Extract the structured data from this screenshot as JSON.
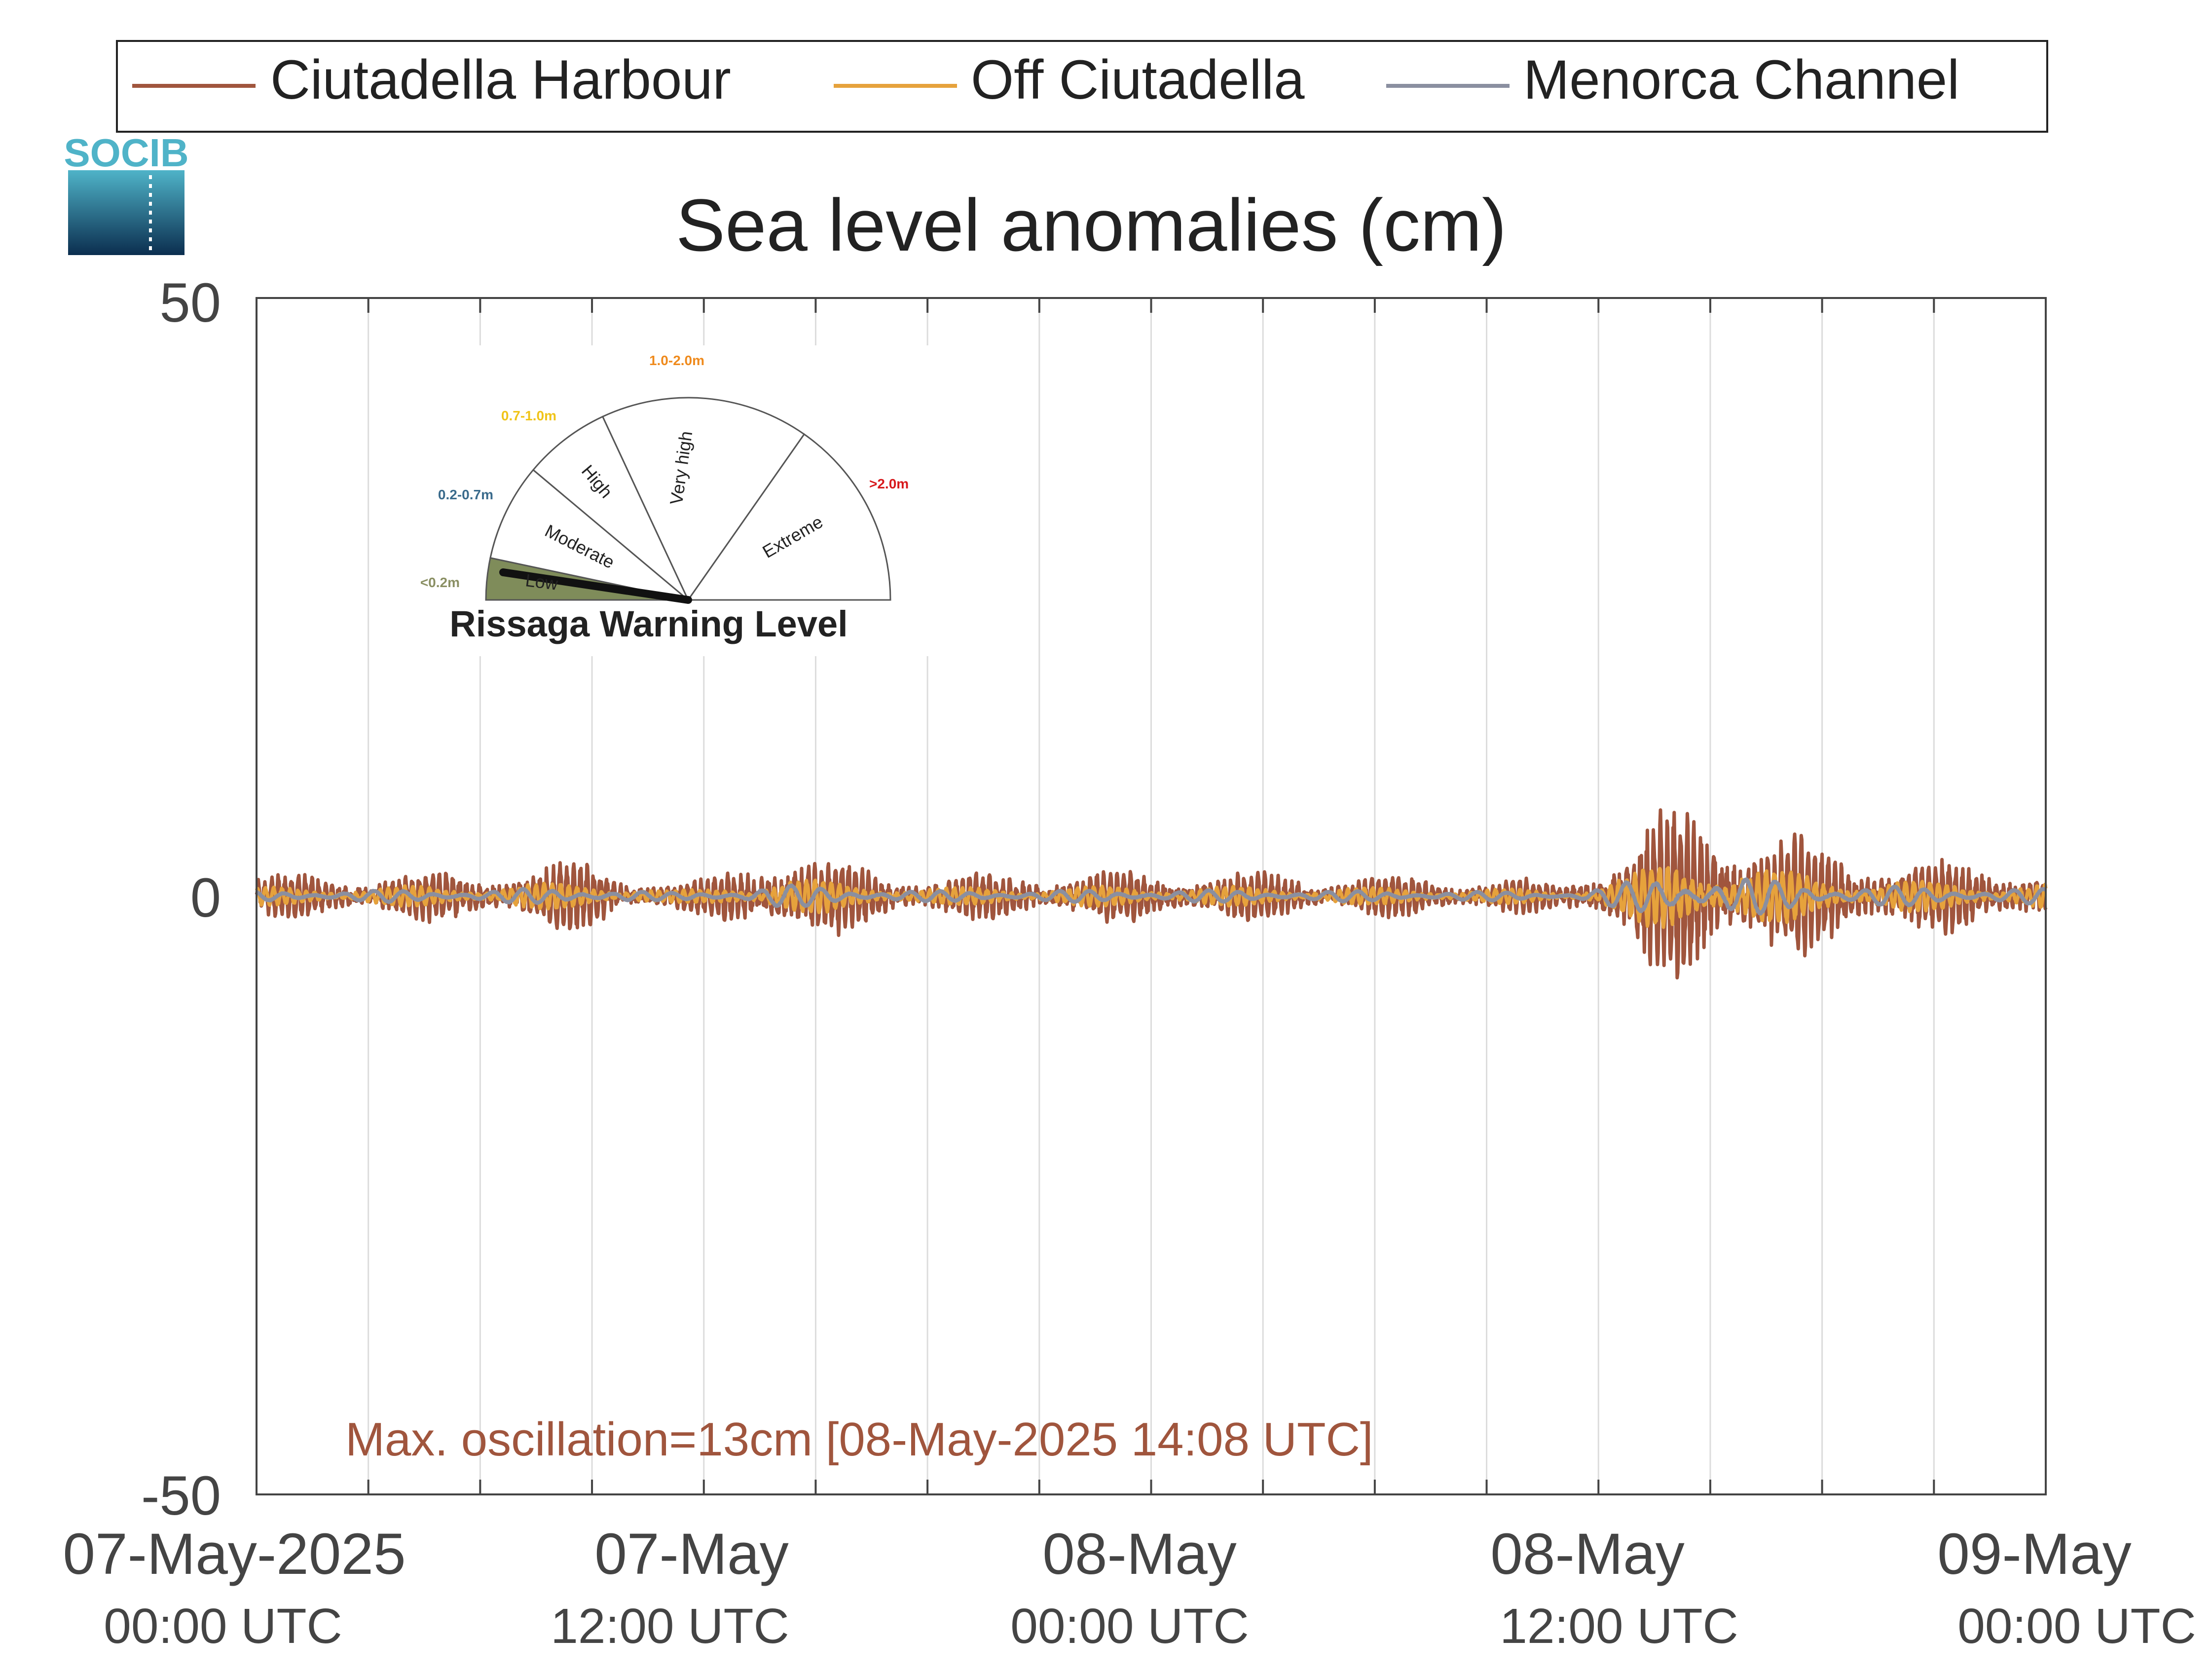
{
  "chart_data": {
    "type": "line",
    "title": "Sea level anomalies (cm)",
    "xlabel": "",
    "ylabel": "",
    "ylim": [
      -50,
      50
    ],
    "yticks": [
      "50",
      "0",
      "-50"
    ],
    "xlim": [
      "2025-05-07 00:00",
      "2025-05-09 00:00"
    ],
    "x_tick_labels": [
      {
        "date": "07-May-2025",
        "time": "00:00 UTC"
      },
      {
        "date": "07-May",
        "time": "12:00 UTC"
      },
      {
        "date": "08-May",
        "time": "00:00 UTC"
      },
      {
        "date": "08-May",
        "time": "12:00 UTC"
      },
      {
        "date": "09-May",
        "time": "00:00 UTC"
      }
    ],
    "grid": "vertical every 3 hours",
    "legend": "top",
    "series": [
      {
        "name": "Ciutadella Harbour",
        "color": "#a0553d"
      },
      {
        "name": "Off Ciutadella",
        "color": "#e6a23c"
      },
      {
        "name": "Menorca Channel",
        "color": "#8a8fa0"
      }
    ],
    "envelope_note_amplitudes_cm": {
      "times": [
        "07-May 00:00",
        "07-May 06:00",
        "07-May 09:00",
        "07-May 11:00",
        "07-May 12:00",
        "07-May 14:00",
        "07-May 15:00",
        "07-May 18:00",
        "08-May 00:00",
        "08-May 06:00",
        "08-May 10:00",
        "08-May 11:00",
        "08-May 12:00",
        "08-May 14:00",
        "08-May 16:00",
        "08-May 18:00",
        "08-May 21:00",
        "09-May 00:00"
      ],
      "ciutadella_harbour": [
        1.5,
        1.8,
        2.5,
        1.0,
        1.2,
        3.5,
        2.8,
        1.5,
        1.8,
        1.5,
        1.2,
        0.8,
        2.5,
        6.5,
        5.5,
        3.5,
        2.5,
        2.2
      ]
    },
    "annotation": "Max. oscillation=13cm [08-May-2025 14:08 UTC]",
    "annotation_color": "#a0553d"
  },
  "logo": {
    "text": "SOCIB"
  },
  "warning_gauge": {
    "title": "Rissaga Warning Level",
    "sectors": [
      {
        "label": "Low",
        "range": "<0.2m",
        "range_color": "#8a8f63",
        "fill": "#7f8c5a"
      },
      {
        "label": "Moderate",
        "range": "0.2-0.7m",
        "range_color": "#3a6b8c",
        "fill": "#ffffff"
      },
      {
        "label": "High",
        "range": "0.7-1.0m",
        "range_color": "#f0c419",
        "fill": "#ffffff"
      },
      {
        "label": "Very high",
        "range": "1.0-2.0m",
        "range_color": "#ef8a1c",
        "fill": "#ffffff"
      },
      {
        "label": "Extreme",
        "range": ">2.0m",
        "range_color": "#d7191c",
        "fill": "#ffffff"
      }
    ],
    "current_level": "Low"
  }
}
